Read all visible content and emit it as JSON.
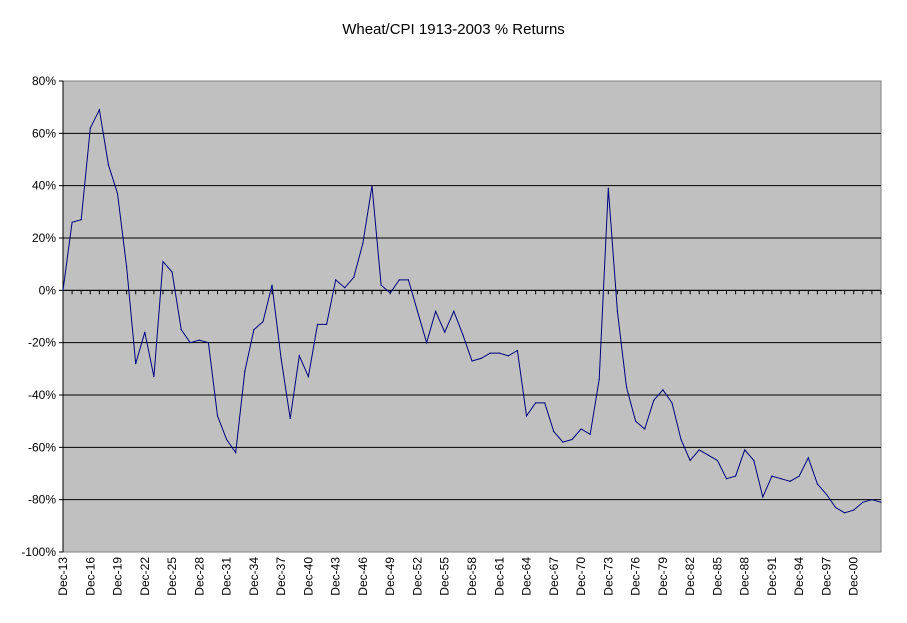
{
  "chart_data": {
    "type": "line",
    "title": "Wheat/CPI 1913-2003  % Returns",
    "xlabel": "",
    "ylabel": "",
    "ylim": [
      -100,
      80
    ],
    "y_ticks": [
      80,
      60,
      40,
      20,
      0,
      -20,
      -40,
      -60,
      -80,
      -100
    ],
    "y_tick_labels": [
      "80%",
      "60%",
      "40%",
      "20%",
      "0%",
      "-20%",
      "-40%",
      "-60%",
      "-80%",
      "-100%"
    ],
    "x_tick_labels": [
      "Dec-13",
      "Dec-16",
      "Dec-19",
      "Dec-22",
      "Dec-25",
      "Dec-28",
      "Dec-31",
      "Dec-34",
      "Dec-37",
      "Dec-40",
      "Dec-43",
      "Dec-46",
      "Dec-49",
      "Dec-52",
      "Dec-55",
      "Dec-58",
      "Dec-61",
      "Dec-64",
      "Dec-67",
      "Dec-70",
      "Dec-73",
      "Dec-76",
      "Dec-79",
      "Dec-82",
      "Dec-85",
      "Dec-88",
      "Dec-91",
      "Dec-94",
      "Dec-97",
      "Dec-00"
    ],
    "grid": true,
    "plot_background": "#c0c0c0",
    "line_color": "#000080",
    "x": [
      1913,
      1914,
      1915,
      1916,
      1917,
      1918,
      1919,
      1920,
      1921,
      1922,
      1923,
      1924,
      1925,
      1926,
      1927,
      1928,
      1929,
      1930,
      1931,
      1932,
      1933,
      1934,
      1935,
      1936,
      1937,
      1938,
      1939,
      1940,
      1941,
      1942,
      1943,
      1944,
      1945,
      1946,
      1947,
      1948,
      1949,
      1950,
      1951,
      1952,
      1953,
      1954,
      1955,
      1956,
      1957,
      1958,
      1959,
      1960,
      1961,
      1962,
      1963,
      1964,
      1965,
      1966,
      1967,
      1968,
      1969,
      1970,
      1971,
      1972,
      1973,
      1974,
      1975,
      1976,
      1977,
      1978,
      1979,
      1980,
      1981,
      1982,
      1983,
      1984,
      1985,
      1986,
      1987,
      1988,
      1989,
      1990,
      1991,
      1992,
      1993,
      1994,
      1995,
      1996,
      1997,
      1998,
      1999,
      2000,
      2001,
      2002,
      2003
    ],
    "series": [
      {
        "values": [
          0,
          26,
          27,
          62,
          69,
          48,
          37,
          9,
          -28,
          -16,
          -33,
          11,
          7,
          -15,
          -20,
          -19,
          -20,
          -48,
          -57,
          -62,
          -31,
          -15,
          -12,
          2,
          -26,
          -49,
          -25,
          -33,
          -13,
          -13,
          4,
          1,
          5,
          18,
          40,
          2,
          -1,
          4,
          4,
          -8,
          -20,
          -8,
          -16,
          -8,
          -17,
          -27,
          -26,
          -24,
          -24,
          -25,
          -23,
          -48,
          -43,
          -43,
          -54,
          -58,
          -57,
          -53,
          -55,
          -34,
          39,
          -8,
          -37,
          -50,
          -53,
          -42,
          -38,
          -43,
          -57,
          -65,
          -61,
          -63,
          -65,
          -72,
          -71,
          -61,
          -65,
          -79,
          -71,
          -72,
          -73,
          -71,
          -64,
          -74,
          -78,
          -83,
          -85,
          -84,
          -81,
          -80,
          -81
        ]
      }
    ]
  }
}
